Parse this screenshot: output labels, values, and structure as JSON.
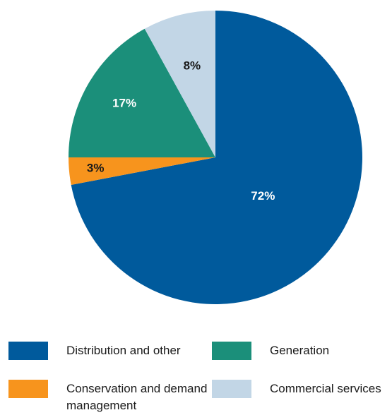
{
  "chart_data": {
    "type": "pie",
    "title": "",
    "start_angle_deg": 0,
    "direction": "clockwise",
    "slices": [
      {
        "name": "Distribution and other",
        "value": 72,
        "label": "72%",
        "color": "#005a9c",
        "label_color": "#ffffff"
      },
      {
        "name": "Conservation and demand management",
        "value": 3,
        "label": "3%",
        "color": "#f7941d",
        "label_color": "#1a1a1a"
      },
      {
        "name": "Generation",
        "value": 17,
        "label": "17%",
        "color": "#1b8f7a",
        "label_color": "#ffffff"
      },
      {
        "name": "Commercial services",
        "value": 8,
        "label": "8%",
        "color": "#c2d6e6",
        "label_color": "#1a1a1a"
      }
    ]
  },
  "legend": {
    "items": [
      {
        "label": "Distribution and other",
        "color": "#005a9c"
      },
      {
        "label": "Generation",
        "color": "#1b8f7a"
      },
      {
        "label": "Conservation and demand management",
        "color": "#f7941d"
      },
      {
        "label": "Commercial services",
        "color": "#c2d6e6"
      }
    ]
  }
}
